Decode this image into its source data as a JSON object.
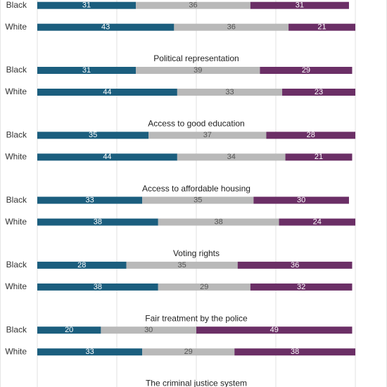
{
  "chart_data": [
    {
      "type": "bar",
      "categories": [
        "Black",
        "White"
      ],
      "xlim": [
        0,
        100
      ],
      "xticks": [
        0,
        25,
        50,
        75,
        100
      ],
      "series": [
        {
          "color": "#1b5e7e",
          "values": [
            31,
            43
          ]
        },
        {
          "color": "#b9b9b9",
          "values": [
            36,
            36
          ]
        },
        {
          "color": "#6b2f66",
          "values": [
            31,
            21
          ]
        }
      ]
    },
    {
      "type": "bar",
      "title": "Political representation",
      "categories": [
        "Black",
        "White"
      ],
      "xlim": [
        0,
        100
      ],
      "xticks": [
        0,
        25,
        50,
        75,
        100
      ],
      "series": [
        {
          "color": "#1b5e7e",
          "values": [
            31,
            44
          ]
        },
        {
          "color": "#b9b9b9",
          "values": [
            39,
            33
          ]
        },
        {
          "color": "#6b2f66",
          "values": [
            29,
            23
          ]
        }
      ]
    },
    {
      "type": "bar",
      "title": "Access to good education",
      "categories": [
        "Black",
        "White"
      ],
      "xlim": [
        0,
        100
      ],
      "xticks": [
        0,
        25,
        50,
        75,
        100
      ],
      "series": [
        {
          "color": "#1b5e7e",
          "values": [
            35,
            44
          ]
        },
        {
          "color": "#b9b9b9",
          "values": [
            37,
            34
          ]
        },
        {
          "color": "#6b2f66",
          "values": [
            28,
            21
          ]
        }
      ]
    },
    {
      "type": "bar",
      "title": "Access to affordable housing",
      "categories": [
        "Black",
        "White"
      ],
      "xlim": [
        0,
        100
      ],
      "xticks": [
        0,
        25,
        50,
        75,
        100
      ],
      "series": [
        {
          "color": "#1b5e7e",
          "values": [
            33,
            38
          ]
        },
        {
          "color": "#b9b9b9",
          "values": [
            35,
            38
          ]
        },
        {
          "color": "#6b2f66",
          "values": [
            30,
            24
          ]
        }
      ]
    },
    {
      "type": "bar",
      "title": "Voting rights",
      "categories": [
        "Black",
        "White"
      ],
      "xlim": [
        0,
        100
      ],
      "xticks": [
        0,
        25,
        50,
        75,
        100
      ],
      "series": [
        {
          "color": "#1b5e7e",
          "values": [
            28,
            38
          ]
        },
        {
          "color": "#b9b9b9",
          "values": [
            35,
            29
          ]
        },
        {
          "color": "#6b2f66",
          "values": [
            36,
            32
          ]
        }
      ]
    },
    {
      "type": "bar",
      "title": "Fair treatment by the police",
      "categories": [
        "Black",
        "White"
      ],
      "xlim": [
        0,
        100
      ],
      "xticks": [
        0,
        25,
        50,
        75,
        100
      ],
      "series": [
        {
          "color": "#1b5e7e",
          "values": [
            20,
            33
          ]
        },
        {
          "color": "#b9b9b9",
          "values": [
            30,
            29
          ]
        },
        {
          "color": "#6b2f66",
          "values": [
            49,
            38
          ]
        }
      ]
    },
    {
      "type": "bar",
      "title": "The criminal justice system",
      "categories": [],
      "xlim": [
        0,
        100
      ],
      "xticks": [
        0,
        25,
        50,
        75,
        100
      ],
      "series": []
    }
  ]
}
